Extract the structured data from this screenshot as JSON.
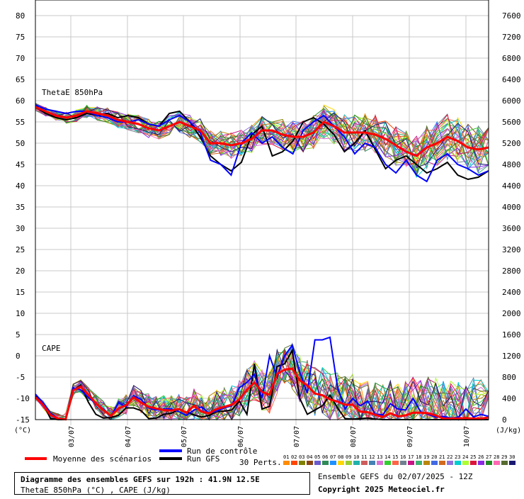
{
  "chart_data": {
    "type": "line",
    "title_line1": "Diagramme des ensembles GEFS sur 192h : 41.9N 12.5E",
    "title_line2": "ThetaE 850hPa (°C) , CAPE (J/kg)",
    "run_info": "Ensemble GEFS du 02/07/2025 - 12Z",
    "copyright": "Copyright 2025 Meteociel.fr",
    "left_axis": {
      "unit": "(°C)",
      "ticks": [
        80,
        75,
        70,
        65,
        60,
        55,
        50,
        45,
        40,
        35,
        30,
        25,
        20,
        15,
        10,
        5,
        0,
        -5,
        -10,
        -15
      ]
    },
    "right_axis": {
      "unit": "(J/kg)",
      "ticks": [
        7600,
        7200,
        6800,
        6400,
        6000,
        5600,
        5200,
        4800,
        4400,
        4000,
        3600,
        3200,
        2800,
        2400,
        2000,
        1600,
        1200,
        800,
        400,
        0
      ]
    },
    "x_labels": [
      "03/07",
      "04/07",
      "05/07",
      "06/07",
      "07/07",
      "08/07",
      "09/07",
      "10/07"
    ],
    "panel_labels": {
      "thetae": "ThetaE 850hPa",
      "cape": "CAPE"
    },
    "legend": {
      "mean": "Moyenne des scénarios",
      "control": "Run de contrôle",
      "gfs": "Run GFS",
      "perts": "30 Perts."
    },
    "member_labels": [
      "01",
      "02",
      "03",
      "04",
      "05",
      "06",
      "07",
      "08",
      "09",
      "10",
      "11",
      "12",
      "13",
      "14",
      "15",
      "16",
      "17",
      "18",
      "19",
      "20",
      "21",
      "22",
      "23",
      "24",
      "25",
      "26",
      "27",
      "28",
      "29",
      "30"
    ],
    "member_colors": [
      "#ff8c00",
      "#ff4500",
      "#808000",
      "#8b4513",
      "#6a5acd",
      "#2e8b57",
      "#1e90ff",
      "#ffd700",
      "#9acd32",
      "#20b2aa",
      "#cd5c5c",
      "#4682b4",
      "#da70d6",
      "#32cd32",
      "#ff6347",
      "#708090",
      "#c71585",
      "#3cb371",
      "#b8860b",
      "#4169e1",
      "#d2691e",
      "#9370db",
      "#00ced1",
      "#adff2f",
      "#dc143c",
      "#8a2be2",
      "#228b22",
      "#ff69b4",
      "#556b2f",
      "#191970"
    ],
    "mean_color": "#ff0000",
    "control_color": "#0000ff",
    "gfs_color": "#000000",
    "thetae": {
      "mean": [
        58.5,
        57.5,
        56.5,
        56,
        56.5,
        57.5,
        57,
        56.5,
        55.5,
        55,
        54.5,
        53.5,
        53,
        54,
        55,
        54,
        53,
        50,
        50,
        49.5,
        50,
        51,
        53,
        53,
        52,
        51.5,
        51.5,
        52.5,
        55,
        54,
        52.5,
        52.5,
        52.5,
        52,
        51,
        49.5,
        48,
        47,
        49,
        50,
        51.5,
        50.5,
        49,
        48.5,
        49
      ],
      "control": [
        59,
        58,
        57.5,
        57,
        57.5,
        57.5,
        56.5,
        56,
        55,
        55,
        55.5,
        54.5,
        54,
        55.5,
        56.5,
        55,
        52.5,
        46,
        45,
        42.5,
        50,
        52.5,
        50,
        51.5,
        49,
        47.5,
        53,
        55,
        56.5,
        54,
        51.5,
        47.5,
        50,
        49,
        45,
        43,
        46,
        42.5,
        41,
        46,
        47.5,
        45,
        44,
        42.5,
        43.5
      ],
      "gfs": [
        58.5,
        57,
        56,
        55.5,
        56,
        57,
        56.5,
        57,
        56,
        56.5,
        56,
        54.5,
        54,
        57,
        57.5,
        55,
        51.5,
        47,
        45,
        43.5,
        45.5,
        52,
        54,
        47,
        48,
        50.5,
        55,
        56,
        54.5,
        52,
        48,
        50,
        53,
        48.5,
        44,
        46,
        47,
        45,
        43,
        44,
        45.5,
        42.5,
        41.5,
        42,
        43.5
      ]
    },
    "cape_jkg": {
      "mean": [
        420,
        280,
        90,
        20,
        5,
        550,
        620,
        470,
        310,
        180,
        70,
        210,
        270,
        420,
        320,
        240,
        210,
        180,
        170,
        200,
        130,
        260,
        150,
        120,
        200,
        240,
        280,
        380,
        560,
        700,
        520,
        470,
        860,
        940,
        960,
        740,
        640,
        490,
        460,
        380,
        340,
        280,
        280,
        150,
        140,
        90,
        50,
        120,
        60,
        80,
        130,
        130,
        120,
        80,
        20,
        20,
        20,
        30,
        20,
        20,
        40
      ],
      "control": [
        480,
        320,
        120,
        20,
        10,
        600,
        560,
        420,
        300,
        200,
        60,
        320,
        240,
        450,
        380,
        220,
        180,
        200,
        200,
        150,
        80,
        180,
        240,
        120,
        160,
        220,
        260,
        600,
        700,
        850,
        400,
        1200,
        800,
        1200,
        1400,
        900,
        500,
        1500,
        1500,
        1550,
        600,
        200,
        400,
        260,
        350,
        100,
        90,
        300,
        200,
        180,
        400,
        150,
        100,
        50,
        60,
        30,
        40,
        200,
        50,
        100,
        60
      ],
      "gfs": [
        450,
        300,
        20,
        0,
        0,
        550,
        650,
        330,
        100,
        30,
        40,
        80,
        220,
        220,
        170,
        20,
        30,
        100,
        120,
        190,
        140,
        90,
        50,
        80,
        150,
        160,
        180,
        350,
        100,
        1050,
        200,
        250,
        1000,
        1050,
        1300,
        400,
        100,
        180,
        260,
        460,
        220,
        20,
        10,
        20,
        30,
        10,
        0,
        0,
        0,
        0,
        0,
        0,
        0,
        0,
        0,
        0,
        0,
        0,
        0,
        0,
        0
      ]
    },
    "thetae_range_c": [
      35,
      62
    ],
    "cape_range_jkg": [
      0,
      2000
    ],
    "grid": true
  }
}
